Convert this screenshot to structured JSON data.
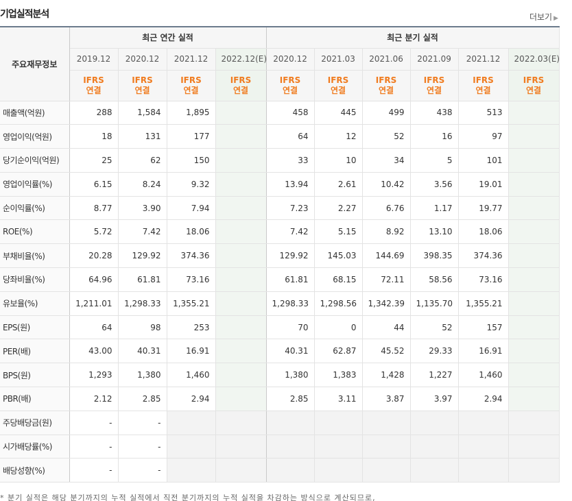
{
  "section": {
    "title": "기업실적분석",
    "more_label": "더보기"
  },
  "header": {
    "row_label": "주요재무정보",
    "annual_group": "최근 연간 실적",
    "quarter_group": "최근 분기 실적",
    "annual_periods": [
      "2019.12",
      "2020.12",
      "2021.12",
      "2022.12(E)"
    ],
    "quarter_periods": [
      "2020.12",
      "2021.03",
      "2021.06",
      "2021.09",
      "2021.12",
      "2022.03(E)"
    ],
    "std_line1": "IFRS",
    "std_line2": "연결"
  },
  "rows": [
    {
      "label": "매출액(억원)",
      "annual": [
        "288",
        "1,584",
        "1,895",
        ""
      ],
      "quarter": [
        "458",
        "445",
        "499",
        "438",
        "513",
        ""
      ]
    },
    {
      "label": "영업이익(억원)",
      "annual": [
        "18",
        "131",
        "177",
        ""
      ],
      "quarter": [
        "64",
        "12",
        "52",
        "16",
        "97",
        ""
      ]
    },
    {
      "label": "당기순이익(억원)",
      "annual": [
        "25",
        "62",
        "150",
        ""
      ],
      "quarter": [
        "33",
        "10",
        "34",
        "5",
        "101",
        ""
      ]
    },
    {
      "label": "영업이익률(%)",
      "annual": [
        "6.15",
        "8.24",
        "9.32",
        ""
      ],
      "quarter": [
        "13.94",
        "2.61",
        "10.42",
        "3.56",
        "19.01",
        ""
      ]
    },
    {
      "label": "순이익률(%)",
      "annual": [
        "8.77",
        "3.90",
        "7.94",
        ""
      ],
      "quarter": [
        "7.23",
        "2.27",
        "6.76",
        "1.17",
        "19.77",
        ""
      ]
    },
    {
      "label": "ROE(%)",
      "annual": [
        "5.72",
        "7.42",
        "18.06",
        ""
      ],
      "quarter": [
        "7.42",
        "5.15",
        "8.92",
        "13.10",
        "18.06",
        ""
      ]
    },
    {
      "label": "부채비율(%)",
      "annual": [
        "20.28",
        "129.92",
        "374.36",
        ""
      ],
      "quarter": [
        "129.92",
        "145.03",
        "144.69",
        "398.35",
        "374.36",
        ""
      ]
    },
    {
      "label": "당좌비율(%)",
      "annual": [
        "64.96",
        "61.81",
        "73.16",
        ""
      ],
      "quarter": [
        "61.81",
        "68.15",
        "72.11",
        "58.56",
        "73.16",
        ""
      ]
    },
    {
      "label": "유보율(%)",
      "annual": [
        "1,211.01",
        "1,298.33",
        "1,355.21",
        ""
      ],
      "quarter": [
        "1,298.33",
        "1,298.56",
        "1,342.39",
        "1,135.70",
        "1,355.21",
        ""
      ]
    },
    {
      "label": "EPS(원)",
      "annual": [
        "64",
        "98",
        "253",
        ""
      ],
      "quarter": [
        "70",
        "0",
        "44",
        "52",
        "157",
        ""
      ]
    },
    {
      "label": "PER(배)",
      "annual": [
        "43.00",
        "40.31",
        "16.91",
        ""
      ],
      "quarter": [
        "40.31",
        "62.87",
        "45.52",
        "29.33",
        "16.91",
        ""
      ]
    },
    {
      "label": "BPS(원)",
      "annual": [
        "1,293",
        "1,380",
        "1,460",
        ""
      ],
      "quarter": [
        "1,380",
        "1,383",
        "1,428",
        "1,227",
        "1,460",
        ""
      ]
    },
    {
      "label": "PBR(배)",
      "annual": [
        "2.12",
        "2.85",
        "2.94",
        ""
      ],
      "quarter": [
        "2.85",
        "3.11",
        "3.87",
        "3.97",
        "2.94",
        ""
      ]
    },
    {
      "label": "주당배당금(원)",
      "annual": [
        "-",
        "-",
        "",
        ""
      ],
      "quarter": [
        "",
        "",
        "",
        "",
        "",
        ""
      ]
    },
    {
      "label": "시가배당률(%)",
      "annual": [
        "-",
        "-",
        "",
        ""
      ],
      "quarter": [
        "",
        "",
        "",
        "",
        "",
        ""
      ]
    },
    {
      "label": "배당성향(%)",
      "annual": [
        "-",
        "-",
        "",
        ""
      ],
      "quarter": [
        "",
        "",
        "",
        "",
        "",
        ""
      ]
    }
  ],
  "group_breaks_before": [
    3,
    6,
    9,
    13
  ],
  "empty_quarter_from_row": 13,
  "empty_annual_third_from_row": 13,
  "footnote": "* 분기 실적은 해당 분기까지의 누적 실적에서 직전 분기까지의 누적 실적을 차감하는 방식으로 계산되므로,"
}
